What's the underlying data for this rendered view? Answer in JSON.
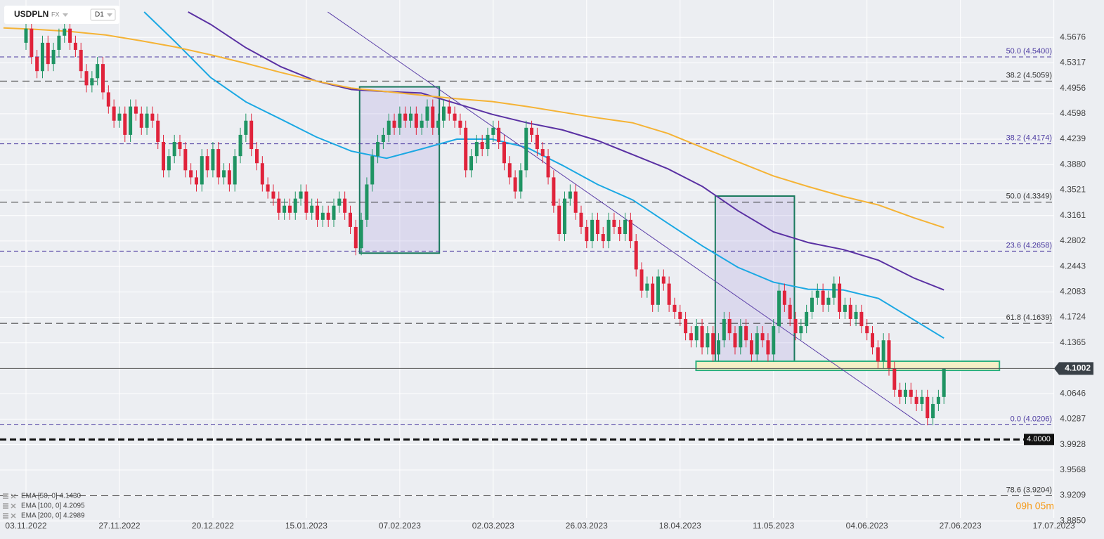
{
  "toolbar": {
    "symbol": "USDPLN",
    "market": "FX",
    "interval": "D1"
  },
  "chart_data": {
    "type": "candlestick",
    "colors": {
      "up": "#1f9463",
      "down": "#e0233b"
    },
    "candles": [
      [
        4.56,
        4.59,
        4.55,
        4.58
      ],
      [
        4.58,
        4.59,
        4.53,
        4.54
      ],
      [
        4.54,
        4.55,
        4.51,
        4.52
      ],
      [
        4.52,
        4.57,
        4.51,
        4.56
      ],
      [
        4.56,
        4.57,
        4.52,
        4.53
      ],
      [
        4.53,
        4.56,
        4.52,
        4.55
      ],
      [
        4.55,
        4.58,
        4.54,
        4.57
      ],
      [
        4.57,
        4.59,
        4.56,
        4.58
      ],
      [
        4.58,
        4.59,
        4.55,
        4.56
      ],
      [
        4.56,
        4.57,
        4.54,
        4.55
      ],
      [
        4.55,
        4.56,
        4.51,
        4.52
      ],
      [
        4.52,
        4.53,
        4.49,
        4.5
      ],
      [
        4.5,
        4.52,
        4.49,
        4.51
      ],
      [
        4.51,
        4.54,
        4.5,
        4.53
      ],
      [
        4.53,
        4.54,
        4.48,
        4.49
      ],
      [
        4.49,
        4.5,
        4.46,
        4.47
      ],
      [
        4.47,
        4.48,
        4.44,
        4.45
      ],
      [
        4.45,
        4.47,
        4.44,
        4.46
      ],
      [
        4.46,
        4.47,
        4.42,
        4.43
      ],
      [
        4.43,
        4.48,
        4.42,
        4.47
      ],
      [
        4.47,
        4.48,
        4.45,
        4.46
      ],
      [
        4.46,
        4.47,
        4.43,
        4.44
      ],
      [
        4.44,
        4.47,
        4.43,
        4.46
      ],
      [
        4.46,
        4.47,
        4.44,
        4.45
      ],
      [
        4.45,
        4.46,
        4.41,
        4.42
      ],
      [
        4.42,
        4.43,
        4.37,
        4.38
      ],
      [
        4.38,
        4.41,
        4.37,
        4.4
      ],
      [
        4.4,
        4.43,
        4.39,
        4.42
      ],
      [
        4.42,
        4.43,
        4.4,
        4.41
      ],
      [
        4.41,
        4.42,
        4.37,
        4.38
      ],
      [
        4.38,
        4.39,
        4.36,
        4.37
      ],
      [
        4.37,
        4.38,
        4.35,
        4.36
      ],
      [
        4.36,
        4.41,
        4.35,
        4.4
      ],
      [
        4.4,
        4.41,
        4.37,
        4.38
      ],
      [
        4.38,
        4.42,
        4.37,
        4.41
      ],
      [
        4.41,
        4.42,
        4.36,
        4.37
      ],
      [
        4.37,
        4.39,
        4.36,
        4.38
      ],
      [
        4.38,
        4.39,
        4.35,
        4.36
      ],
      [
        4.36,
        4.41,
        4.35,
        4.4
      ],
      [
        4.4,
        4.44,
        4.39,
        4.43
      ],
      [
        4.43,
        4.46,
        4.42,
        4.45
      ],
      [
        4.45,
        4.46,
        4.4,
        4.41
      ],
      [
        4.41,
        4.42,
        4.38,
        4.39
      ],
      [
        4.39,
        4.4,
        4.35,
        4.36
      ],
      [
        4.36,
        4.37,
        4.34,
        4.35
      ],
      [
        4.35,
        4.36,
        4.33,
        4.34
      ],
      [
        4.34,
        4.35,
        4.31,
        4.32
      ],
      [
        4.32,
        4.34,
        4.31,
        4.33
      ],
      [
        4.33,
        4.34,
        4.31,
        4.32
      ],
      [
        4.32,
        4.35,
        4.31,
        4.34
      ],
      [
        4.34,
        4.36,
        4.33,
        4.35
      ],
      [
        4.35,
        4.36,
        4.31,
        4.32
      ],
      [
        4.32,
        4.34,
        4.31,
        4.33
      ],
      [
        4.33,
        4.34,
        4.3,
        4.31
      ],
      [
        4.31,
        4.33,
        4.3,
        4.32
      ],
      [
        4.32,
        4.33,
        4.3,
        4.31
      ],
      [
        4.31,
        4.34,
        4.3,
        4.33
      ],
      [
        4.33,
        4.35,
        4.32,
        4.34
      ],
      [
        4.34,
        4.35,
        4.31,
        4.32
      ],
      [
        4.32,
        4.33,
        4.29,
        4.3
      ],
      [
        4.3,
        4.31,
        4.26,
        4.27
      ],
      [
        4.27,
        4.32,
        4.26,
        4.31
      ],
      [
        4.31,
        4.37,
        4.3,
        4.36
      ],
      [
        4.36,
        4.41,
        4.35,
        4.4
      ],
      [
        4.4,
        4.43,
        4.39,
        4.42
      ],
      [
        4.42,
        4.44,
        4.41,
        4.43
      ],
      [
        4.43,
        4.46,
        4.42,
        4.45
      ],
      [
        4.45,
        4.46,
        4.43,
        4.44
      ],
      [
        4.44,
        4.47,
        4.43,
        4.46
      ],
      [
        4.46,
        4.47,
        4.44,
        4.45
      ],
      [
        4.45,
        4.47,
        4.44,
        4.46
      ],
      [
        4.46,
        4.47,
        4.43,
        4.44
      ],
      [
        4.44,
        4.46,
        4.43,
        4.45
      ],
      [
        4.45,
        4.48,
        4.44,
        4.47
      ],
      [
        4.47,
        4.48,
        4.43,
        4.44
      ],
      [
        4.44,
        4.46,
        4.43,
        4.45
      ],
      [
        4.45,
        4.48,
        4.44,
        4.47
      ],
      [
        4.47,
        4.48,
        4.45,
        4.46
      ],
      [
        4.46,
        4.47,
        4.44,
        4.45
      ],
      [
        4.45,
        4.46,
        4.43,
        4.44
      ],
      [
        4.44,
        4.45,
        4.37,
        4.38
      ],
      [
        4.38,
        4.41,
        4.37,
        4.4
      ],
      [
        4.4,
        4.43,
        4.39,
        4.42
      ],
      [
        4.42,
        4.43,
        4.4,
        4.41
      ],
      [
        4.41,
        4.44,
        4.4,
        4.43
      ],
      [
        4.43,
        4.45,
        4.42,
        4.44
      ],
      [
        4.44,
        4.45,
        4.41,
        4.42
      ],
      [
        4.42,
        4.43,
        4.38,
        4.39
      ],
      [
        4.39,
        4.4,
        4.36,
        4.37
      ],
      [
        4.37,
        4.38,
        4.34,
        4.35
      ],
      [
        4.35,
        4.39,
        4.34,
        4.38
      ],
      [
        4.38,
        4.45,
        4.37,
        4.44
      ],
      [
        4.44,
        4.45,
        4.42,
        4.43
      ],
      [
        4.43,
        4.44,
        4.4,
        4.41
      ],
      [
        4.41,
        4.42,
        4.39,
        4.4
      ],
      [
        4.4,
        4.41,
        4.36,
        4.37
      ],
      [
        4.37,
        4.38,
        4.32,
        4.33
      ],
      [
        4.33,
        4.34,
        4.28,
        4.29
      ],
      [
        4.29,
        4.35,
        4.28,
        4.34
      ],
      [
        4.34,
        4.36,
        4.33,
        4.35
      ],
      [
        4.35,
        4.36,
        4.31,
        4.32
      ],
      [
        4.32,
        4.33,
        4.29,
        4.3
      ],
      [
        4.3,
        4.31,
        4.27,
        4.28
      ],
      [
        4.28,
        4.32,
        4.27,
        4.31
      ],
      [
        4.31,
        4.32,
        4.28,
        4.29
      ],
      [
        4.29,
        4.3,
        4.27,
        4.28
      ],
      [
        4.28,
        4.32,
        4.27,
        4.31
      ],
      [
        4.31,
        4.32,
        4.29,
        4.3
      ],
      [
        4.3,
        4.31,
        4.28,
        4.29
      ],
      [
        4.29,
        4.32,
        4.28,
        4.31
      ],
      [
        4.31,
        4.32,
        4.27,
        4.28
      ],
      [
        4.28,
        4.29,
        4.23,
        4.24
      ],
      [
        4.24,
        4.25,
        4.2,
        4.21
      ],
      [
        4.21,
        4.23,
        4.2,
        4.22
      ],
      [
        4.22,
        4.23,
        4.18,
        4.19
      ],
      [
        4.19,
        4.24,
        4.18,
        4.23
      ],
      [
        4.23,
        4.24,
        4.21,
        4.22
      ],
      [
        4.22,
        4.23,
        4.18,
        4.19
      ],
      [
        4.19,
        4.2,
        4.17,
        4.18
      ],
      [
        4.18,
        4.19,
        4.16,
        4.17
      ],
      [
        4.17,
        4.18,
        4.14,
        4.15
      ],
      [
        4.15,
        4.16,
        4.13,
        4.14
      ],
      [
        4.14,
        4.17,
        4.13,
        4.16
      ],
      [
        4.16,
        4.17,
        4.12,
        4.13
      ],
      [
        4.13,
        4.16,
        4.12,
        4.15
      ],
      [
        4.15,
        4.16,
        4.11,
        4.12
      ],
      [
        4.12,
        4.15,
        4.11,
        4.14
      ],
      [
        4.14,
        4.18,
        4.13,
        4.17
      ],
      [
        4.17,
        4.18,
        4.14,
        4.15
      ],
      [
        4.15,
        4.16,
        4.12,
        4.13
      ],
      [
        4.13,
        4.17,
        4.12,
        4.16
      ],
      [
        4.16,
        4.17,
        4.13,
        4.14
      ],
      [
        4.14,
        4.15,
        4.11,
        4.12
      ],
      [
        4.12,
        4.16,
        4.11,
        4.15
      ],
      [
        4.15,
        4.16,
        4.13,
        4.14
      ],
      [
        4.14,
        4.15,
        4.11,
        4.12
      ],
      [
        4.12,
        4.17,
        4.11,
        4.16
      ],
      [
        4.16,
        4.22,
        4.15,
        4.21
      ],
      [
        4.21,
        4.22,
        4.18,
        4.19
      ],
      [
        4.19,
        4.2,
        4.16,
        4.17
      ],
      [
        4.17,
        4.18,
        4.14,
        4.15
      ],
      [
        4.15,
        4.17,
        4.14,
        4.16
      ],
      [
        4.16,
        4.19,
        4.15,
        4.18
      ],
      [
        4.18,
        4.21,
        4.17,
        4.2
      ],
      [
        4.2,
        4.22,
        4.19,
        4.21
      ],
      [
        4.21,
        4.22,
        4.18,
        4.19
      ],
      [
        4.19,
        4.21,
        4.18,
        4.2
      ],
      [
        4.2,
        4.23,
        4.19,
        4.22
      ],
      [
        4.22,
        4.23,
        4.17,
        4.18
      ],
      [
        4.18,
        4.2,
        4.17,
        4.19
      ],
      [
        4.19,
        4.2,
        4.16,
        4.17
      ],
      [
        4.17,
        4.19,
        4.16,
        4.18
      ],
      [
        4.18,
        4.19,
        4.15,
        4.16
      ],
      [
        4.16,
        4.17,
        4.14,
        4.15
      ],
      [
        4.15,
        4.16,
        4.12,
        4.13
      ],
      [
        4.13,
        4.14,
        4.1,
        4.11
      ],
      [
        4.11,
        4.15,
        4.1,
        4.14
      ],
      [
        4.14,
        4.15,
        4.09,
        4.1
      ],
      [
        4.1,
        4.11,
        4.06,
        4.07
      ],
      [
        4.07,
        4.08,
        4.05,
        4.06
      ],
      [
        4.06,
        4.08,
        4.05,
        4.07
      ],
      [
        4.07,
        4.08,
        4.05,
        4.06
      ],
      [
        4.06,
        4.07,
        4.04,
        4.05
      ],
      [
        4.05,
        4.07,
        4.04,
        4.06
      ],
      [
        4.06,
        4.07,
        4.02,
        4.03
      ],
      [
        4.03,
        4.06,
        4.02,
        4.05
      ],
      [
        4.05,
        4.07,
        4.04,
        4.06
      ],
      [
        4.06,
        4.1,
        4.05,
        4.1
      ]
    ],
    "xlim": [
      -4.73,
      192.8
    ],
    "xticks": [
      {
        "value": 0,
        "label": "03.11.2022"
      },
      {
        "value": 17,
        "label": "27.11.2022"
      },
      {
        "value": 34,
        "label": "20.12.2022"
      },
      {
        "value": 51,
        "label": "15.01.2023"
      },
      {
        "value": 68,
        "label": "07.02.2023"
      },
      {
        "value": 85,
        "label": "02.03.2023"
      },
      {
        "value": 102,
        "label": "26.03.2023"
      },
      {
        "value": 119,
        "label": "18.04.2023"
      },
      {
        "value": 136,
        "label": "11.05.2023"
      },
      {
        "value": 153,
        "label": "04.06.2023"
      },
      {
        "value": 170,
        "label": "27.06.2023"
      },
      {
        "value": 187,
        "label": "17.07.2023"
      }
    ],
    "ylim": [
      3.8892,
      4.6204
    ],
    "yticks": [
      4.5676,
      4.5317,
      4.4956,
      4.4598,
      4.4239,
      {
        "value": 4.388,
        "label": "4.3880"
      },
      4.3521,
      4.3161,
      4.2802,
      4.2443,
      4.2083,
      4.1724,
      4.1365,
      4.0646,
      4.0287,
      3.9928,
      3.9568,
      3.9209,
      {
        "value": 3.885,
        "label": "3.8850"
      }
    ],
    "grid": true,
    "series": [
      {
        "name": "EMA [50, 0] 4.1430",
        "color": "#1ba8e3",
        "x": [
          21.5,
          27.2,
          33.6,
          40,
          46.4,
          52.8,
          59.2,
          65.6,
          71.9,
          78.4,
          84.8,
          91.2,
          97.6,
          104,
          110.4,
          116.8,
          123.1,
          129.5,
          136,
          142.3,
          148.7,
          155.1,
          161.5,
          167
        ],
        "values": [
          4.6035,
          4.561,
          4.511,
          4.4765,
          4.452,
          4.427,
          4.407,
          4.397,
          4.41,
          4.424,
          4.424,
          4.412,
          4.387,
          4.36,
          4.338,
          4.305,
          4.273,
          4.243,
          4.222,
          4.212,
          4.211,
          4.199,
          4.169,
          4.143
        ]
      },
      {
        "name": "EMA [100, 0] 4.2095",
        "color": "#5a31a3",
        "x": [
          29.5,
          33.6,
          40,
          46.4,
          52.8,
          59.2,
          65.6,
          71.9,
          78.4,
          84.8,
          91.2,
          97.6,
          104,
          110.4,
          116.8,
          123.1,
          129.5,
          136,
          142.3,
          148.7,
          155.1,
          161.5,
          167
        ],
        "values": [
          4.6035,
          4.586,
          4.553,
          4.526,
          4.506,
          4.494,
          4.491,
          4.489,
          4.474,
          4.459,
          4.447,
          4.437,
          4.422,
          4.402,
          4.382,
          4.357,
          4.323,
          4.293,
          4.278,
          4.268,
          4.253,
          4.228,
          4.211
        ]
      },
      {
        "name": "EMA [200, 0] 4.2989",
        "color": "#f5b335",
        "x": [
          -4.1,
          1.7,
          8,
          14.5,
          20.8,
          27.2,
          33.6,
          40,
          46.4,
          52.8,
          59.2,
          65.6,
          71.9,
          78.4,
          84.8,
          91.2,
          97.6,
          104,
          110.4,
          116.8,
          123.1,
          129.5,
          136,
          142.3,
          148.7,
          155.1,
          161.5,
          167
        ],
        "values": [
          4.581,
          4.579,
          4.576,
          4.571,
          4.563,
          4.554,
          4.543,
          4.531,
          4.518,
          4.506,
          4.496,
          4.491,
          4.486,
          4.481,
          4.477,
          4.47,
          4.462,
          4.454,
          4.447,
          4.432,
          4.412,
          4.392,
          4.372,
          4.357,
          4.343,
          4.331,
          4.313,
          4.299
        ]
      }
    ],
    "levels": [
      {
        "value": 4.54,
        "label": "50.0 (4.5400)",
        "color": "#4b3aa0"
      },
      {
        "value": 4.5059,
        "label": "38.2 (4.5059)",
        "color": "#333333"
      },
      {
        "value": 4.4174,
        "label": "38.2 (4.4174)",
        "color": "#4b3aa0"
      },
      {
        "value": 4.3349,
        "label": "50.0 (4.3349)",
        "color": "#333333"
      },
      {
        "value": 4.2658,
        "label": "23.6 (4.2658)",
        "color": "#4b3aa0"
      },
      {
        "value": 4.1639,
        "label": "61.8 (4.1639)",
        "color": "#333333"
      },
      {
        "value": 4.0206,
        "label": "0.0 (4.0206)",
        "color": "#4b3aa0"
      },
      {
        "value": 3.9204,
        "label": "78.6 (3.9204)",
        "color": "#333333"
      }
    ],
    "round_level": {
      "value": 4,
      "label": "4.0000"
    },
    "last_price": 4.1002,
    "trendline": {
      "x": [
        54.9,
        162.8
      ],
      "y": [
        4.6035,
        4.0216
      ],
      "color": "#5b3fa8"
    },
    "boxes": [
      {
        "x": [
          60.7,
          75.2
        ],
        "y": [
          4.263,
          4.4978
        ]
      },
      {
        "x": [
          125.4,
          139.8
        ],
        "y": [
          4.1045,
          4.3436
        ]
      }
    ],
    "zone": {
      "x": [
        121.9,
        177.1
      ],
      "y": [
        4.0975,
        4.1104
      ]
    }
  },
  "countdown": "09h 05m"
}
